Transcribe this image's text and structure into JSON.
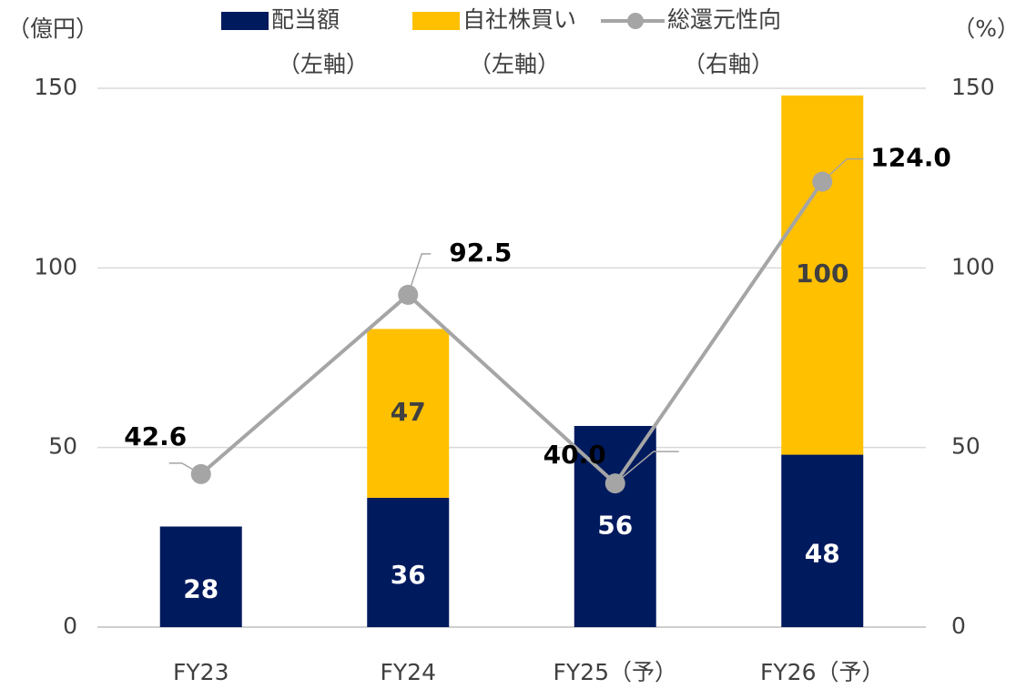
{
  "chart_data": {
    "type": "bar_line",
    "y_axis_label": "（億円）",
    "y2_axis_label": "（%）",
    "categories": [
      "FY23",
      "FY24",
      "FY25（予）",
      "FY26（予）"
    ],
    "series": [
      {
        "name": "配当額",
        "axis_note": "（左軸）",
        "type": "bar",
        "color": "#001a5e",
        "label_color": "#ffffff",
        "values": [
          28,
          36,
          56,
          48
        ]
      },
      {
        "name": "自社株買い",
        "axis_note": "（左軸）",
        "type": "bar",
        "color": "#ffc000",
        "label_color": "#404040",
        "values": [
          null,
          47,
          null,
          100
        ]
      },
      {
        "name": "総還元性向",
        "axis_note": "（右軸）",
        "type": "line",
        "axis": "y2",
        "color": "#a5a5a5",
        "values": [
          42.6,
          92.5,
          40.0,
          124.0
        ],
        "value_labels": [
          "42.6",
          "92.5",
          "40.0",
          "124.0"
        ]
      }
    ],
    "ylim": [
      0,
      150
    ],
    "yticks": [
      0,
      50,
      100,
      150
    ],
    "y2lim": [
      0,
      150
    ],
    "y2ticks": [
      0,
      50,
      100,
      150
    ],
    "grid": true,
    "stacked": true
  }
}
